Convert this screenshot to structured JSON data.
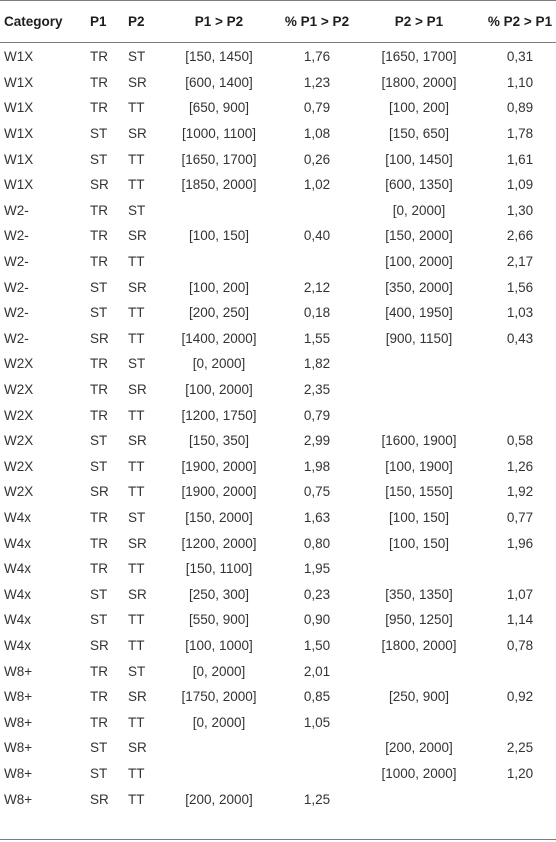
{
  "headers": [
    "Category",
    "P1",
    "P2",
    "P1 > P2",
    "% P1 > P2",
    "P2 > P1",
    "% P2 > P1"
  ],
  "rows": [
    [
      "W1X",
      "TR",
      "ST",
      "[150, 1450]",
      "1,76",
      "[1650, 1700]",
      "0,31"
    ],
    [
      "W1X",
      "TR",
      "SR",
      "[600, 1400]",
      "1,23",
      "[1800, 2000]",
      "1,10"
    ],
    [
      "W1X",
      "TR",
      "TT",
      "[650, 900]",
      "0,79",
      "[100, 200]",
      "0,89"
    ],
    [
      "W1X",
      "ST",
      "SR",
      "[1000, 1100]",
      "1,08",
      "[150, 650]",
      "1,78"
    ],
    [
      "W1X",
      "ST",
      "TT",
      "[1650, 1700]",
      "0,26",
      "[100, 1450]",
      "1,61"
    ],
    [
      "W1X",
      "SR",
      "TT",
      "[1850, 2000]",
      "1,02",
      "[600, 1350]",
      "1,09"
    ],
    [
      "W2-",
      "TR",
      "ST",
      "",
      "",
      "[0, 2000]",
      "1,30"
    ],
    [
      "W2-",
      "TR",
      "SR",
      "[100, 150]",
      "0,40",
      "[150, 2000]",
      "2,66"
    ],
    [
      "W2-",
      "TR",
      "TT",
      "",
      "",
      "[100, 2000]",
      "2,17"
    ],
    [
      "W2-",
      "ST",
      "SR",
      "[100, 200]",
      "2,12",
      "[350, 2000]",
      "1,56"
    ],
    [
      "W2-",
      "ST",
      "TT",
      "[200, 250]",
      "0,18",
      "[400, 1950]",
      "1,03"
    ],
    [
      "W2-",
      "SR",
      "TT",
      "[1400, 2000]",
      "1,55",
      "[900, 1150]",
      "0,43"
    ],
    [
      "W2X",
      "TR",
      "ST",
      "[0, 2000]",
      "1,82",
      "",
      ""
    ],
    [
      "W2X",
      "TR",
      "SR",
      "[100, 2000]",
      "2,35",
      "",
      ""
    ],
    [
      "W2X",
      "TR",
      "TT",
      "[1200, 1750]",
      "0,79",
      "",
      ""
    ],
    [
      "W2X",
      "ST",
      "SR",
      "[150, 350]",
      "2,99",
      "[1600, 1900]",
      "0,58"
    ],
    [
      "W2X",
      "ST",
      "TT",
      "[1900, 2000]",
      "1,98",
      "[100, 1900]",
      "1,26"
    ],
    [
      "W2X",
      "SR",
      "TT",
      "[1900, 2000]",
      "0,75",
      "[150, 1550]",
      "1,92"
    ],
    [
      "W4x",
      "TR",
      "ST",
      "[150, 2000]",
      "1,63",
      "[100, 150]",
      "0,77"
    ],
    [
      "W4x",
      "TR",
      "SR",
      "[1200, 2000]",
      "0,80",
      "[100, 150]",
      "1,96"
    ],
    [
      "W4x",
      "TR",
      "TT",
      "[150, 1100]",
      "1,95",
      "",
      ""
    ],
    [
      "W4x",
      "ST",
      "SR",
      "[250, 300]",
      "0,23",
      "[350, 1350]",
      "1,07"
    ],
    [
      "W4x",
      "ST",
      "TT",
      "[550, 900]",
      "0,90",
      "[950, 1250]",
      "1,14"
    ],
    [
      "W4x",
      "SR",
      "TT",
      "[100, 1000]",
      "1,50",
      "[1800, 2000]",
      "0,78"
    ],
    [
      "W8+",
      "TR",
      "ST",
      "[0, 2000]",
      "2,01",
      "",
      ""
    ],
    [
      "W8+",
      "TR",
      "SR",
      "[1750, 2000]",
      "0,85",
      "[250, 900]",
      "0,92"
    ],
    [
      "W8+",
      "TR",
      "TT",
      "[0, 2000]",
      "1,05",
      "",
      ""
    ],
    [
      "W8+",
      "ST",
      "SR",
      "",
      "",
      "[200, 2000]",
      "2,25"
    ],
    [
      "W8+",
      "ST",
      "TT",
      "",
      "",
      "[1000, 2000]",
      "1,20"
    ],
    [
      "W8+",
      "SR",
      "TT",
      "[200, 2000]",
      "1,25",
      "",
      ""
    ]
  ]
}
